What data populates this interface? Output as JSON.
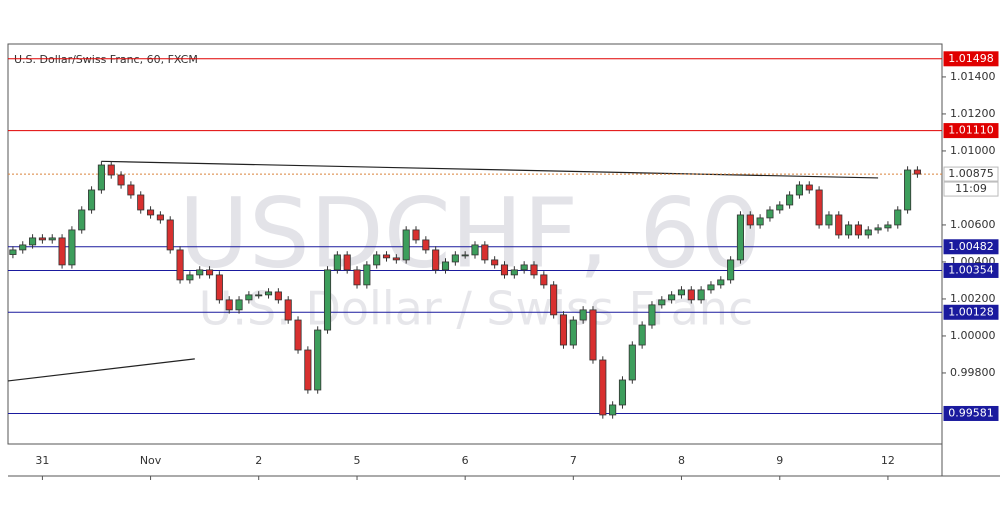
{
  "chart_data": {
    "type": "candlestick",
    "title": "U.S. Dollar/Swiss Franc, 60, FXCM",
    "watermark": "USDCHF, 60",
    "watermark_subtitle": "U.S. Dollar / Swiss Franc",
    "up_color": "#3d9e5c",
    "down_color": "#d8302f",
    "grid": false,
    "xlim": [
      -0.5,
      94.5
    ],
    "ylim": [
      0.99416,
      1.01578
    ],
    "xticks": [
      {
        "value": 3,
        "label": "31"
      },
      {
        "value": 14,
        "label": "Nov"
      },
      {
        "value": 25,
        "label": "2"
      },
      {
        "value": 35,
        "label": "5"
      },
      {
        "value": 46,
        "label": "6"
      },
      {
        "value": 57,
        "label": "7"
      },
      {
        "value": 68,
        "label": "8"
      },
      {
        "value": 78,
        "label": "9"
      },
      {
        "value": 89,
        "label": "12"
      }
    ],
    "yticks": [
      {
        "value": 1.014,
        "label": "1.01400"
      },
      {
        "value": 1.012,
        "label": "1.01200"
      },
      {
        "value": 1.01,
        "label": "1.01000"
      },
      {
        "value": 1.006,
        "label": "1.00600"
      },
      {
        "value": 1.004,
        "label": "1.00400"
      },
      {
        "value": 1.002,
        "label": "1.00200"
      },
      {
        "value": 1,
        "label": "1.00000"
      },
      {
        "value": 0.998,
        "label": "0.99800"
      }
    ],
    "open": [
      1.0044,
      1.00465,
      1.00492,
      1.0053,
      1.00519,
      1.0053,
      1.00384,
      1.00573,
      1.00681,
      1.00789,
      1.00924,
      1.0087,
      1.00816,
      1.00762,
      1.00681,
      1.00654,
      1.00627,
      1.00465,
      1.00303,
      1.0033,
      1.00357,
      1.0033,
      1.00195,
      1.00141,
      1.00195,
      1.00222,
      1.00222,
      1.00238,
      1.00195,
      1.00086,
      0.99924,
      0.99708,
      1.00032,
      1.00357,
      1.00438,
      1.00357,
      1.00276,
      1.00384,
      1.00438,
      1.00422,
      1.00411,
      1.00573,
      1.00519,
      1.00465,
      1.00357,
      1.004,
      1.00438,
      1.00438,
      1.00492,
      1.00411,
      1.00384,
      1.0033,
      1.00357,
      1.00384,
      1.0033,
      1.00276,
      1.00114,
      0.99951,
      1.00086,
      1.00141,
      0.9987,
      0.99573,
      0.99627,
      0.99762,
      0.99951,
      1.00059,
      1.00168,
      1.00195,
      1.00222,
      1.00249,
      1.00195,
      1.00249,
      1.00276,
      1.00303,
      1.00411,
      1.00654,
      1.006,
      1.00638,
      1.00681,
      1.00708,
      1.00762,
      1.00816,
      1.00789,
      1.006,
      1.00654,
      1.00546,
      1.006,
      1.00546,
      1.00573,
      1.00584,
      1.006,
      1.00681,
      1.00897
    ],
    "high": [
      1.00485,
      1.00512,
      1.0055,
      1.0055,
      1.0055,
      1.0055,
      1.00593,
      1.00701,
      1.00809,
      1.00944,
      1.00944,
      1.0089,
      1.00836,
      1.00782,
      1.00701,
      1.00674,
      1.00647,
      1.00485,
      1.0035,
      1.00377,
      1.00377,
      1.0035,
      1.00215,
      1.00215,
      1.00242,
      1.00242,
      1.00258,
      1.00258,
      1.00215,
      1.00106,
      0.99944,
      1.00052,
      1.00377,
      1.00458,
      1.00458,
      1.00377,
      1.00404,
      1.00458,
      1.00458,
      1.00442,
      1.00593,
      1.00593,
      1.00539,
      1.00485,
      1.0042,
      1.00458,
      1.00458,
      1.00512,
      1.00512,
      1.00431,
      1.00404,
      1.00377,
      1.00404,
      1.00404,
      1.0035,
      1.00296,
      1.00134,
      1.00106,
      1.00161,
      1.00161,
      0.9989,
      0.99647,
      0.99782,
      0.99971,
      1.00079,
      1.00188,
      1.00215,
      1.00242,
      1.00269,
      1.00269,
      1.00269,
      1.00296,
      1.00323,
      1.00431,
      1.00674,
      1.00674,
      1.00658,
      1.00701,
      1.00728,
      1.00782,
      1.00836,
      1.00836,
      1.00809,
      1.00674,
      1.00674,
      1.0062,
      1.0062,
      1.00593,
      1.00604,
      1.0062,
      1.00701,
      1.00917,
      1.00917
    ],
    "low": [
      1.0042,
      1.00445,
      1.00472,
      1.00499,
      1.00499,
      1.00364,
      1.00364,
      1.00553,
      1.00661,
      1.00769,
      1.0085,
      1.00796,
      1.00742,
      1.00661,
      1.00634,
      1.00607,
      1.00445,
      1.00283,
      1.00283,
      1.0031,
      1.0031,
      1.00175,
      1.00121,
      1.00121,
      1.00175,
      1.00202,
      1.00202,
      1.00175,
      1.00066,
      0.99904,
      0.99688,
      0.99688,
      1.00012,
      1.00337,
      1.00337,
      1.00256,
      1.00256,
      1.00364,
      1.00402,
      1.00391,
      1.00391,
      1.00499,
      1.00445,
      1.00337,
      1.00337,
      1.0038,
      1.00418,
      1.00418,
      1.00391,
      1.00364,
      1.0031,
      1.0031,
      1.00337,
      1.0031,
      1.00256,
      1.00094,
      0.99931,
      0.99931,
      1.00066,
      0.9985,
      0.99553,
      0.99553,
      0.99607,
      0.99742,
      0.99931,
      1.00039,
      1.00148,
      1.00175,
      1.00202,
      1.00175,
      1.00175,
      1.00229,
      1.00256,
      1.00283,
      1.00391,
      1.0058,
      1.0058,
      1.00618,
      1.00661,
      1.00688,
      1.00742,
      1.00769,
      1.0058,
      1.0058,
      1.00526,
      1.00526,
      1.00526,
      1.00526,
      1.00553,
      1.00564,
      1.0058,
      1.00661,
      1.00855
    ],
    "close": [
      1.00465,
      1.00492,
      1.0053,
      1.00519,
      1.0053,
      1.00384,
      1.00573,
      1.00681,
      1.00789,
      1.00924,
      1.0087,
      1.00816,
      1.00762,
      1.00681,
      1.00654,
      1.00627,
      1.00465,
      1.00303,
      1.0033,
      1.00357,
      1.0033,
      1.00195,
      1.00141,
      1.00195,
      1.00222,
      1.00222,
      1.00238,
      1.00195,
      1.00086,
      0.99924,
      0.99708,
      1.00032,
      1.00357,
      1.00438,
      1.00357,
      1.00276,
      1.00384,
      1.00438,
      1.00422,
      1.00411,
      1.00573,
      1.00519,
      1.00465,
      1.00357,
      1.004,
      1.00438,
      1.00438,
      1.00492,
      1.00411,
      1.00384,
      1.0033,
      1.00357,
      1.00384,
      1.0033,
      1.00276,
      1.00114,
      0.99951,
      1.00086,
      1.00141,
      0.9987,
      0.99573,
      0.99627,
      0.99762,
      0.99951,
      1.00059,
      1.00168,
      1.00195,
      1.00222,
      1.00249,
      1.00195,
      1.00249,
      1.00276,
      1.00303,
      1.00411,
      1.00654,
      1.006,
      1.00638,
      1.00681,
      1.00708,
      1.00762,
      1.00816,
      1.00789,
      1.006,
      1.00654,
      1.00546,
      1.006,
      1.00546,
      1.00573,
      1.00584,
      1.006,
      1.00681,
      1.00897,
      1.00875
    ],
    "levels": [
      {
        "value": 1.01498,
        "label": "1.01498",
        "color": "#e00000"
      },
      {
        "value": 1.0111,
        "label": "1.01110",
        "color": "#e00000"
      },
      {
        "value": 1.00482,
        "label": "1.00482",
        "color": "#1a1a9e"
      },
      {
        "value": 1.00354,
        "label": "1.00354",
        "color": "#1a1a9e"
      },
      {
        "value": 1.00128,
        "label": "1.00128",
        "color": "#1a1a9e"
      },
      {
        "value": 0.99581,
        "label": "0.99581",
        "color": "#1a1a9e"
      }
    ],
    "current_price": {
      "value": 1.00875,
      "label": "1.00875",
      "countdown": "11:09",
      "color": "#d9823b"
    },
    "trendlines": [
      {
        "x": [
          9,
          88
        ],
        "y": [
          1.00944,
          1.00854
        ]
      },
      {
        "x": [
          -0.5,
          18.5
        ],
        "y": [
          0.99757,
          0.99876
        ]
      }
    ]
  }
}
